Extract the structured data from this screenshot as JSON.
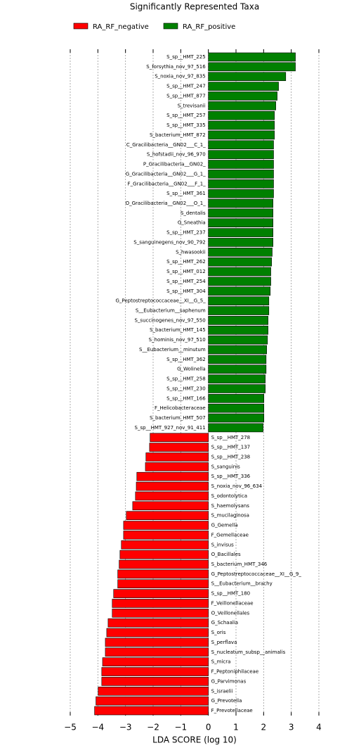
{
  "chart_data": {
    "type": "bar",
    "orientation": "horizontal",
    "title": "Significantly Represented Taxa",
    "x_label": "LDA SCORE (log 10)",
    "xlim": [
      -5,
      4
    ],
    "xticks": [
      {
        "value": -5,
        "label": "−5"
      },
      {
        "value": -4,
        "label": "−4"
      },
      {
        "value": -3,
        "label": "−3"
      },
      {
        "value": -2,
        "label": "−2"
      },
      {
        "value": -1,
        "label": "−1"
      },
      0,
      1,
      2,
      3,
      4
    ],
    "grid": true,
    "legend": "top-left",
    "categories": [
      "S_sp__HMT_225",
      "S_forsythia_nov_97_516",
      "S_noxia_nov_97_835",
      "S_sp__HMT_247",
      "S_sp__HMT_877",
      "S_trevisanii",
      "S_sp__HMT_257",
      "S_sp__HMT_335",
      "S_bacterium_HMT_872",
      "C_Gracilibacteria__GN02___C_1_",
      "S_hofstadii_nov_96_970",
      "P_Gracilibacteria__GN02_",
      "G_Gracilibacteria__GN02___G_1_",
      "F_Gracilibacteria__GN02___F_1_",
      "S_sp__HMT_361",
      "O_Gracilibacteria__GN02___O_1_",
      "S_dentalis",
      "G_Sneathia",
      "S_sp__HMT_237",
      "S_sanguinegens_nov_90_792",
      "S_hwasookii",
      "S_sp__HMT_262",
      "S_sp__HMT_012",
      "S_sp__HMT_254",
      "S_sp__HMT_304",
      "G_Peptostreptococcaceae__XI__G_5_",
      "S__Eubacterium__saphenum",
      "S_succinogenes_nov_97_550",
      "S_bacterium_HMT_145",
      "S_hominis_nov_97_510",
      "S__Eubacterium__minutum",
      "S_sp__HMT_362",
      "G_Wolinella",
      "S_sp__HMT_258",
      "S_sp__HMT_230",
      "S_sp__HMT_166",
      "F_Helicobacteraceae",
      "S_bacterium_HMT_507",
      "S_sp__HMT_927_nov_91_411",
      "S_sp__HMT_278",
      "S_sp__HMT_137",
      "S_sp__HMT_238",
      "S_sanguinis",
      "S_sp__HMT_336",
      "S_noxia_nov_96_634",
      "S_odontolytica",
      "S_haemolysans",
      "S_mucilaginosa",
      "G_Gemella",
      "F_Gemellaceae",
      "S_invisus",
      "O_Bacillales",
      "S_bacterium_HMT_346",
      "G_Peptostreptococcaceae__XI__G_9_",
      "S__Eubacterium__brachy",
      "S_sp__HMT_180",
      "F_Veillonellaceae",
      "O_Veillonellales",
      "G_Schaalia",
      "S_oris",
      "S_perflava",
      "S_nucleatum_subsp__animalis",
      "S_micra",
      "F_Peptoniphilaceae",
      "G_Parvimonas",
      "S_israelii",
      "G_Prevotella",
      "F_Prevotellaceae"
    ],
    "series": [
      {
        "name": "RA_RF_negative",
        "color": "#ff0000",
        "values": [
          null,
          null,
          null,
          null,
          null,
          null,
          null,
          null,
          null,
          null,
          null,
          null,
          null,
          null,
          null,
          null,
          null,
          null,
          null,
          null,
          null,
          null,
          null,
          null,
          null,
          null,
          null,
          null,
          null,
          null,
          null,
          null,
          null,
          null,
          null,
          null,
          null,
          null,
          null,
          -2.11,
          -2.13,
          -2.26,
          -2.28,
          -2.59,
          -2.61,
          -2.64,
          -2.74,
          -2.97,
          -3.07,
          -3.07,
          -3.15,
          -3.2,
          -3.23,
          -3.28,
          -3.28,
          -3.43,
          -3.48,
          -3.48,
          -3.63,
          -3.68,
          -3.73,
          -3.73,
          -3.83,
          -3.86,
          -3.86,
          -3.99,
          -4.07,
          -4.12
        ]
      },
      {
        "name": "RA_RF_positive",
        "color": "#008000",
        "values": [
          3.15,
          3.15,
          2.8,
          2.54,
          2.49,
          2.44,
          2.39,
          2.39,
          2.39,
          2.36,
          2.36,
          2.36,
          2.36,
          2.36,
          2.36,
          2.34,
          2.34,
          2.34,
          2.34,
          2.34,
          2.31,
          2.29,
          2.26,
          2.26,
          2.24,
          2.19,
          2.19,
          2.16,
          2.16,
          2.14,
          2.11,
          2.09,
          2.09,
          2.06,
          2.06,
          2.01,
          2.01,
          2.01,
          1.98,
          null,
          null,
          null,
          null,
          null,
          null,
          null,
          null,
          null,
          null,
          null,
          null,
          null,
          null,
          null,
          null,
          null,
          null,
          null,
          null,
          null,
          null,
          null,
          null,
          null,
          null,
          null,
          null,
          null
        ]
      }
    ]
  }
}
